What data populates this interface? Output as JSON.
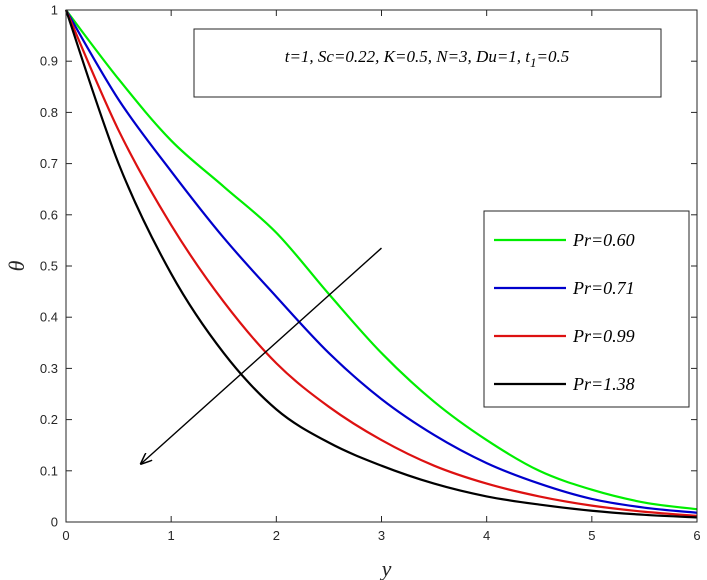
{
  "chart_data": {
    "type": "line",
    "xlabel": "y",
    "ylabel": "θ",
    "xlim": [
      0,
      6
    ],
    "ylim": [
      0,
      1
    ],
    "xticks": [
      "0",
      "1",
      "2",
      "3",
      "4",
      "5",
      "6"
    ],
    "yticks": [
      "0",
      "0.1",
      "0.2",
      "0.3",
      "0.4",
      "0.5",
      "0.6",
      "0.7",
      "0.8",
      "0.9",
      "1"
    ],
    "grid": false,
    "legend_position": "right",
    "annotation": {
      "parts": [
        {
          "text": "t=1, Sc=0.22, K=0.5, N=3, Du=1, t",
          "sub": false
        },
        {
          "text": "1",
          "sub": true
        },
        {
          "text": "=0.5",
          "sub": false
        }
      ]
    },
    "arrow": {
      "from": [
        3.0,
        0.535
      ],
      "to": [
        0.72,
        0.115
      ]
    },
    "x": [
      0,
      0.5,
      1,
      1.5,
      2,
      2.5,
      3,
      3.5,
      4,
      4.5,
      5,
      5.5,
      6
    ],
    "series": [
      {
        "name": "Pr=0.60",
        "color": "#00ee00",
        "values": [
          1.0,
          0.865,
          0.745,
          0.655,
          0.565,
          0.445,
          0.33,
          0.235,
          0.16,
          0.1,
          0.063,
          0.038,
          0.025
        ]
      },
      {
        "name": "Pr=0.71",
        "color": "#0000cc",
        "values": [
          1.0,
          0.825,
          0.685,
          0.555,
          0.44,
          0.33,
          0.24,
          0.17,
          0.115,
          0.075,
          0.045,
          0.028,
          0.018
        ]
      },
      {
        "name": "Pr=0.99",
        "color": "#dd1111",
        "values": [
          1.0,
          0.765,
          0.58,
          0.43,
          0.31,
          0.225,
          0.16,
          0.11,
          0.075,
          0.05,
          0.032,
          0.02,
          0.012
        ]
      },
      {
        "name": "Pr=1.38",
        "color": "#000000",
        "values": [
          1.0,
          0.7,
          0.485,
          0.33,
          0.22,
          0.155,
          0.11,
          0.075,
          0.05,
          0.034,
          0.022,
          0.014,
          0.009
        ]
      }
    ]
  }
}
